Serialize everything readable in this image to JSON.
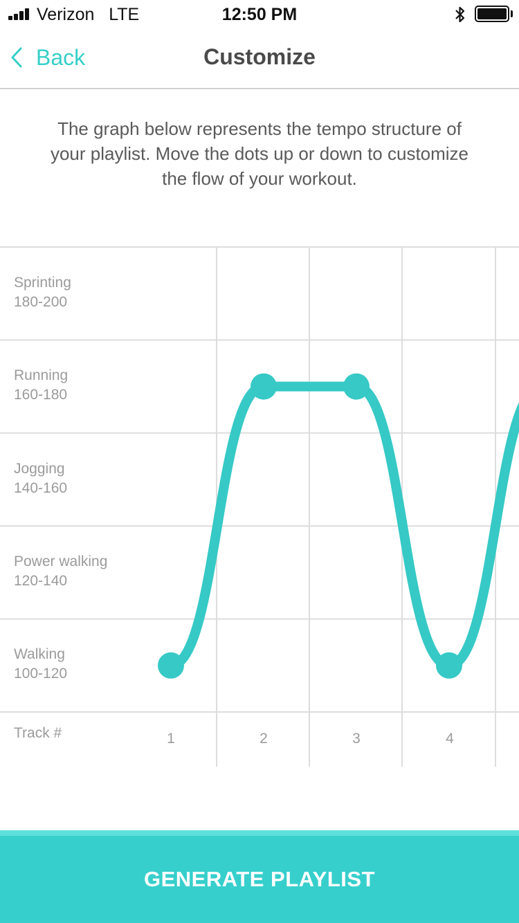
{
  "status_bar": {
    "carrier": "Verizon   LTE",
    "time": "12:50 PM"
  },
  "nav": {
    "back_label": "Back",
    "title": "Customize"
  },
  "description": "The graph below represents the tempo structure of your playlist. Move the dots up or down to customize the flow of your workout.",
  "chart_data": {
    "type": "line",
    "xlabel": "Track #",
    "tempo_zones": [
      {
        "name": "Sprinting",
        "range": "180-200"
      },
      {
        "name": "Running",
        "range": "160-180"
      },
      {
        "name": "Jogging",
        "range": "140-160"
      },
      {
        "name": "Power walking",
        "range": "120-140"
      },
      {
        "name": "Walking",
        "range": "100-120"
      }
    ],
    "x": [
      "1",
      "2",
      "3",
      "4"
    ],
    "series": [
      {
        "values": [
          110,
          170,
          170,
          110
        ]
      }
    ],
    "ylim": [
      100,
      200
    ],
    "grid": true,
    "color": "#36c9c6"
  },
  "button": {
    "label": "GENERATE PLAYLIST"
  },
  "colors": {
    "accent": "#36cfcc",
    "grid": "#dddddd",
    "label": "#9b9b9b"
  }
}
